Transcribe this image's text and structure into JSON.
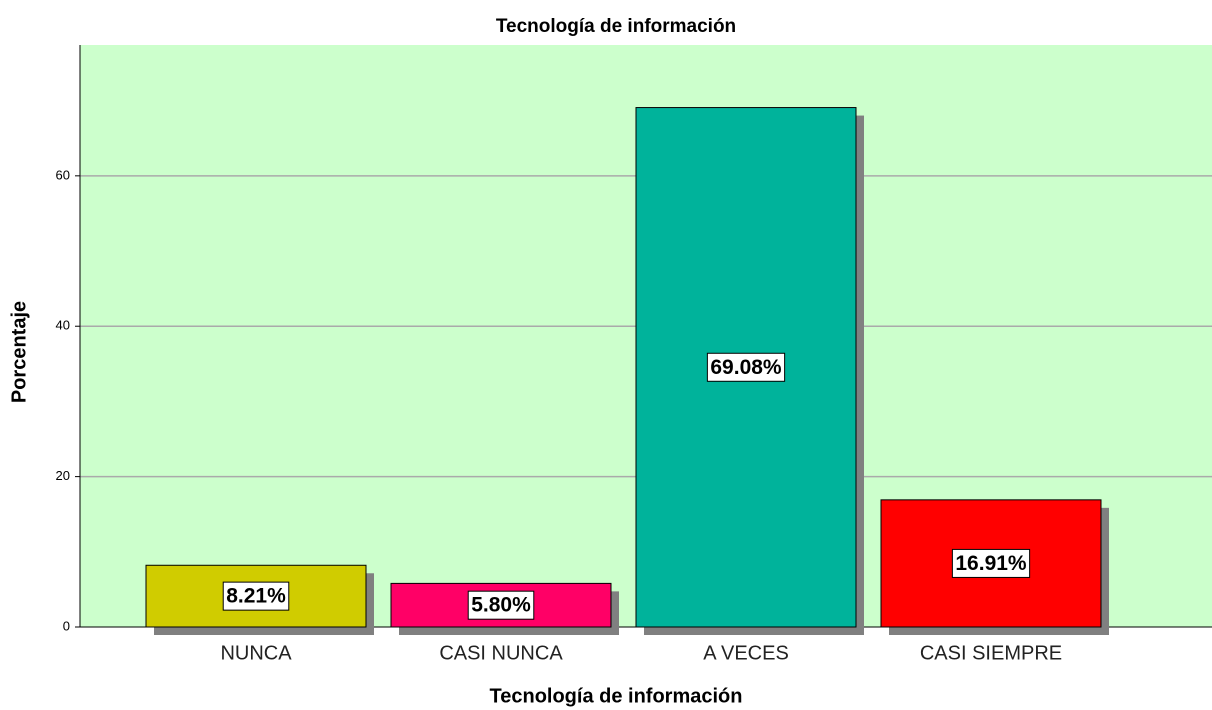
{
  "chart_data": {
    "type": "bar",
    "title": "Tecnología de información",
    "x_label": "Tecnología de información",
    "y_label": "Porcentaje",
    "categories": [
      "NUNCA",
      "CASI NUNCA",
      "A VECES",
      "CASI SIEMPRE"
    ],
    "values": [
      8.21,
      5.8,
      69.08,
      16.91
    ],
    "value_labels": [
      "8.21%",
      "5.80%",
      "69.08%",
      "16.91%"
    ],
    "colors": [
      "#d0cc00",
      "#ff0066",
      "#00b39b",
      "#ff0000"
    ],
    "ylim": [
      0,
      77.4
    ],
    "yticks": [
      0,
      20,
      40,
      60
    ],
    "grid": true
  }
}
